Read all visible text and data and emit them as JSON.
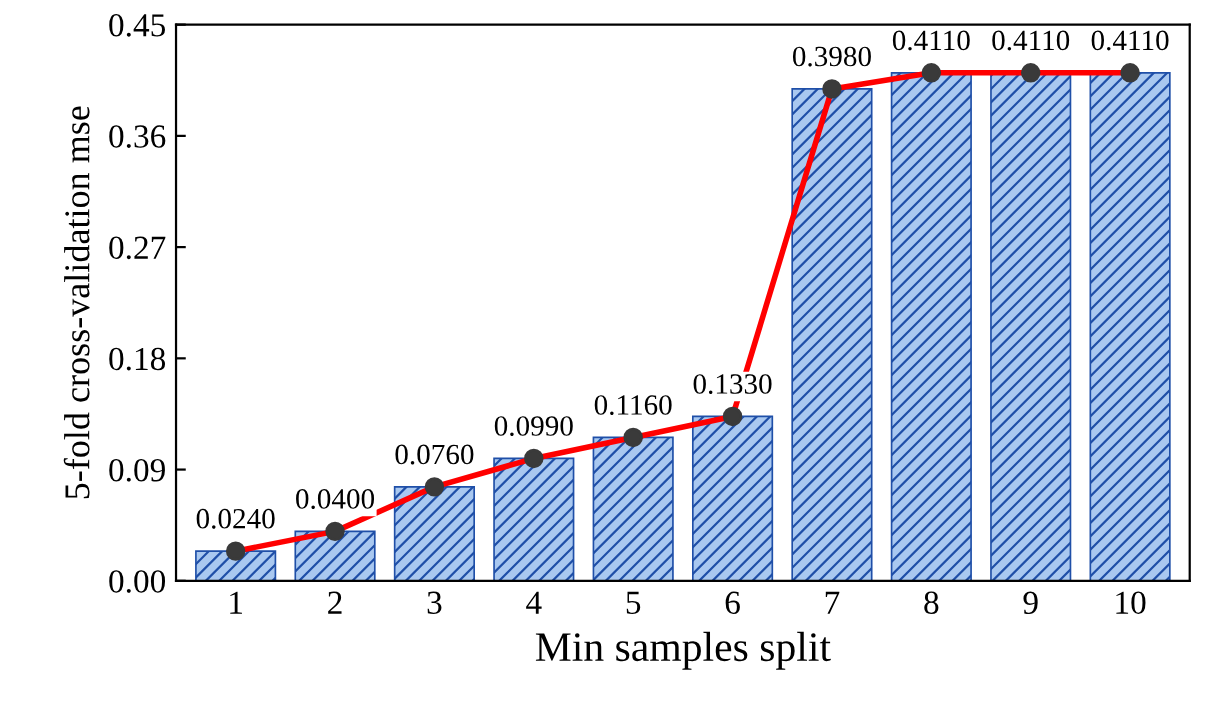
{
  "chart_data": {
    "type": "bar",
    "xlabel": "Min samples split",
    "ylabel": "5-fold cross-validation mse",
    "categories": [
      "1",
      "2",
      "3",
      "4",
      "5",
      "6",
      "7",
      "8",
      "9",
      "10"
    ],
    "series": [
      {
        "color": "#1f4fa8",
        "values": [
          0.024,
          0.04,
          0.076,
          0.099,
          0.116,
          0.133,
          0.398,
          0.411,
          0.411,
          0.411
        ]
      },
      {
        "type": "line",
        "color": "#ff0000",
        "values": [
          0.024,
          0.04,
          0.076,
          0.099,
          0.116,
          0.133,
          0.398,
          0.411,
          0.411,
          0.411
        ]
      }
    ],
    "value_labels": [
      "0.0240",
      "0.0400",
      "0.0760",
      "0.0990",
      "0.1160",
      "0.1330",
      "0.3980",
      "0.4110",
      "0.4110",
      "0.4110"
    ],
    "ylim": [
      0,
      0.45
    ],
    "yticks": [
      {
        "value": 0,
        "label": "0.00"
      },
      {
        "value": 0.09,
        "label": "0.09"
      },
      {
        "value": 0.18,
        "label": "0.18"
      },
      {
        "value": 0.27,
        "label": "0.27"
      },
      {
        "value": 0.36,
        "label": "0.36"
      },
      {
        "value": 0.45,
        "label": "0.45"
      }
    ],
    "marker": "circle",
    "line_style": "solid",
    "grid": false,
    "legend": false
  }
}
